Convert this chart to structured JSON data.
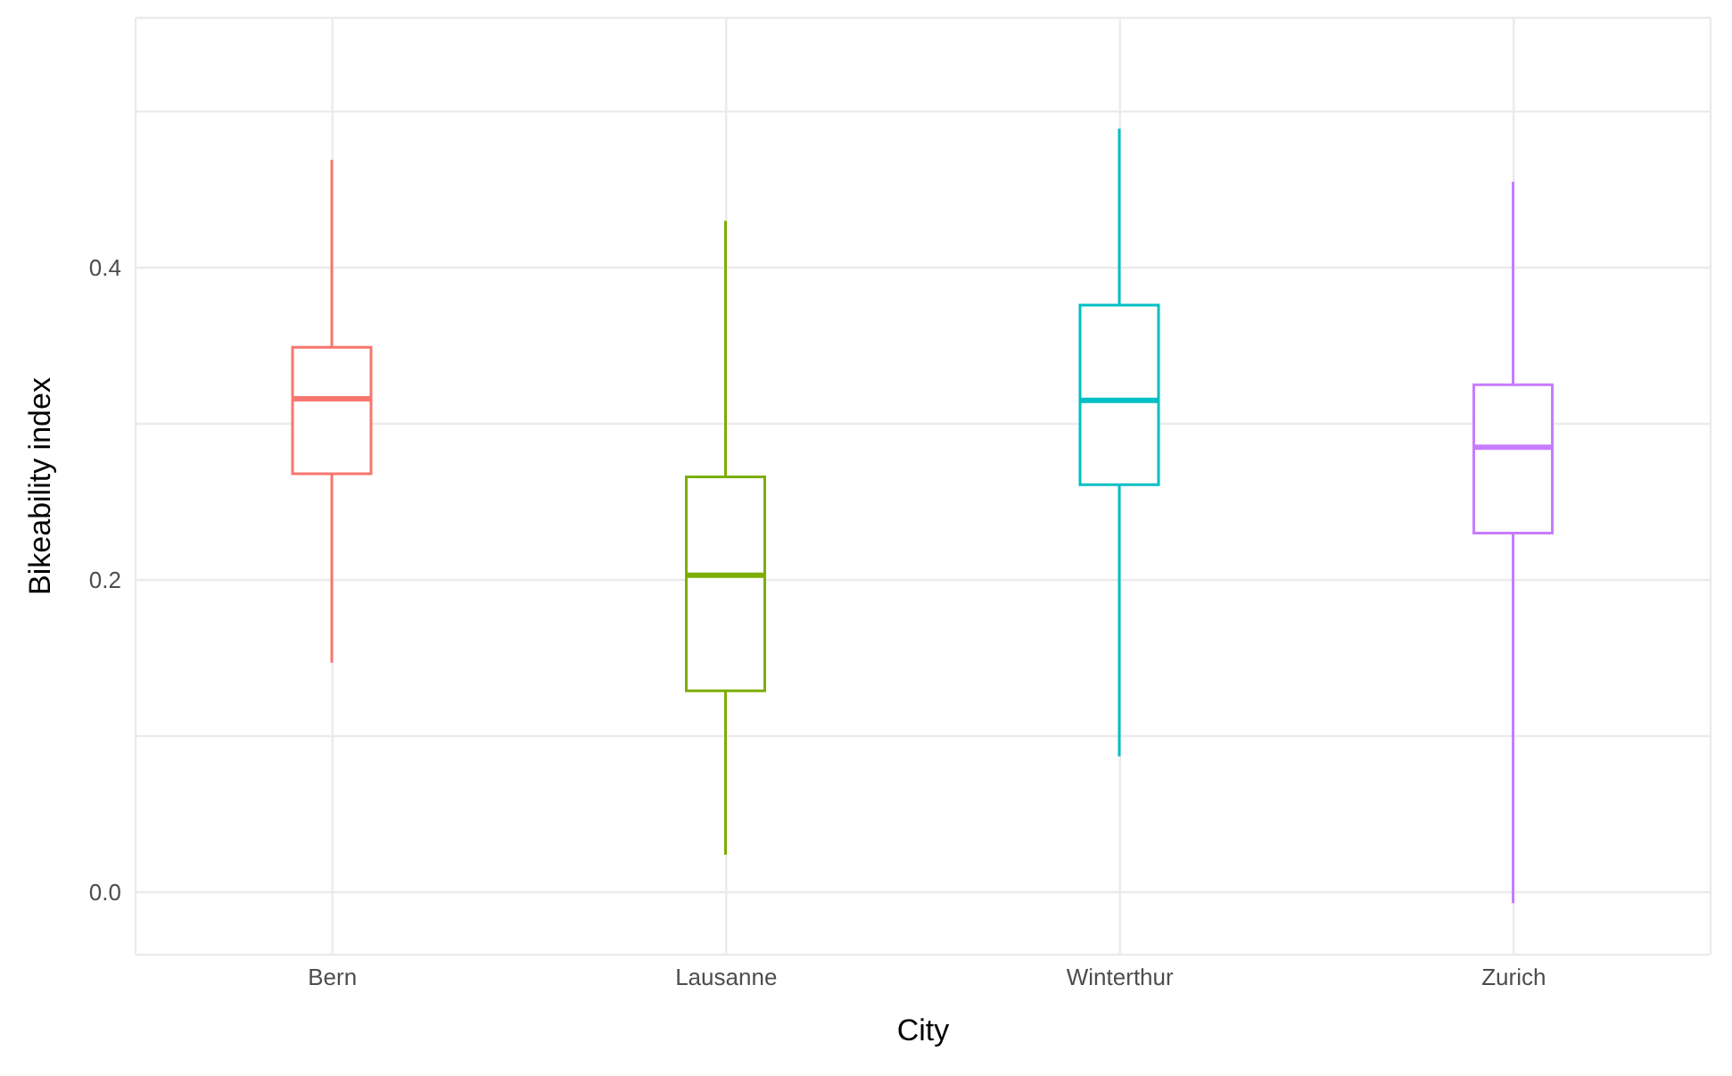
{
  "chart_data": {
    "type": "box",
    "xlabel": "City",
    "ylabel": "Bikeability index",
    "categories": [
      "Bern",
      "Lausanne",
      "Winterthur",
      "Zurich"
    ],
    "colors": [
      "#f8766d",
      "#7cae00",
      "#00bfc4",
      "#c77cff"
    ],
    "boxes": [
      {
        "low": 0.147,
        "q1": 0.268,
        "median": 0.316,
        "q3": 0.349,
        "high": 0.469
      },
      {
        "low": 0.024,
        "q1": 0.129,
        "median": 0.203,
        "q3": 0.266,
        "high": 0.43
      },
      {
        "low": 0.087,
        "q1": 0.261,
        "median": 0.315,
        "q3": 0.376,
        "high": 0.489
      },
      {
        "low": -0.007,
        "q1": 0.23,
        "median": 0.285,
        "q3": 0.325,
        "high": 0.455
      }
    ],
    "ylim": [
      -0.04,
      0.56
    ],
    "yticks": [
      {
        "value": 0,
        "label": "0.0"
      },
      {
        "value": 0.1,
        "label": null
      },
      {
        "value": 0.2,
        "label": "0.2"
      },
      {
        "value": 0.3,
        "label": null
      },
      {
        "value": 0.4,
        "label": "0.4"
      },
      {
        "value": 0.5,
        "label": null
      }
    ],
    "grid": true,
    "legend": false
  }
}
